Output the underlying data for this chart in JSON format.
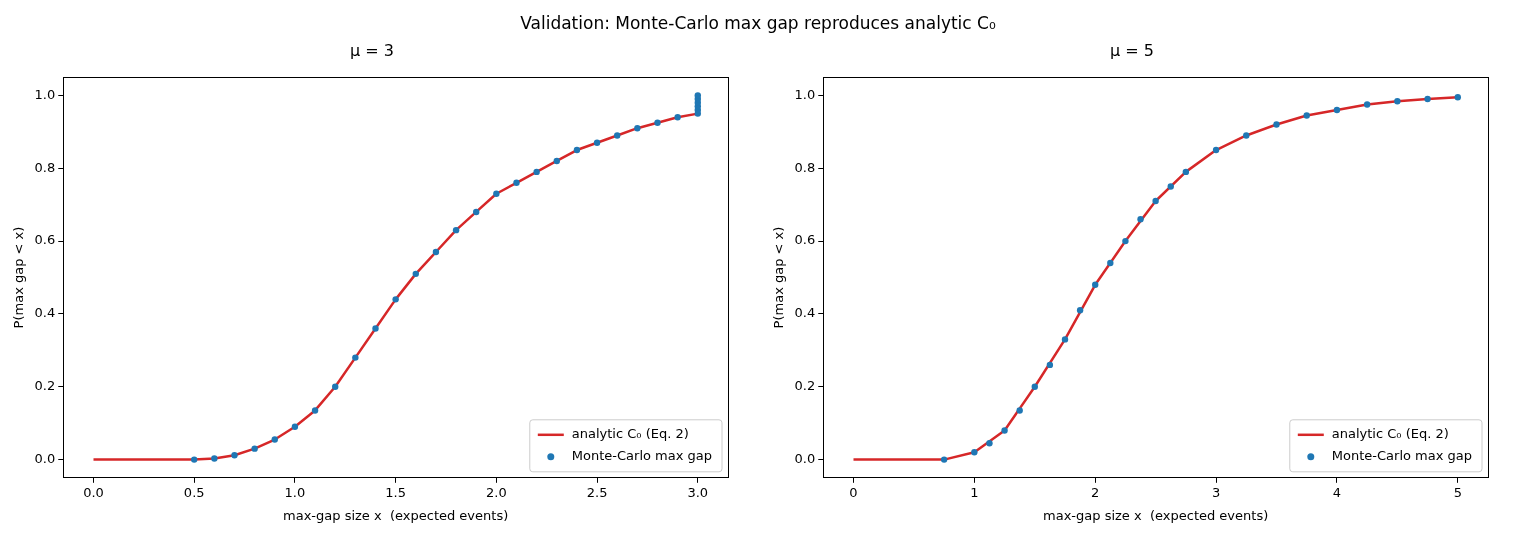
{
  "chart_data": [
    {
      "type": "line",
      "title": "μ = 3",
      "xlabel": "max-gap size x  (expected events)",
      "ylabel": "P(max gap < x)",
      "annotations": [
        "Validation: Monte-Carlo max gap reproduces analytic C₀"
      ],
      "xlim": [
        -0.15,
        3.15
      ],
      "ylim": [
        -0.05,
        1.05
      ],
      "xticks": [
        {
          "value": 0,
          "label": "0.0"
        },
        {
          "value": 0.5,
          "label": "0.5"
        },
        {
          "value": 1,
          "label": "1.0"
        },
        {
          "value": 1.5,
          "label": "1.5"
        },
        {
          "value": 2,
          "label": "2.0"
        },
        {
          "value": 2.5,
          "label": "2.5"
        },
        {
          "value": 3,
          "label": "3.0"
        }
      ],
      "yticks": [
        {
          "value": 0,
          "label": "0.0"
        },
        {
          "value": 0.2,
          "label": "0.2"
        },
        {
          "value": 0.4,
          "label": "0.4"
        },
        {
          "value": 0.6,
          "label": "0.6"
        },
        {
          "value": 0.8,
          "label": "0.8"
        },
        {
          "value": 1,
          "label": "1.0"
        }
      ],
      "grid": false,
      "legend": "bottom right",
      "series": [
        {
          "name": "analytic C₀ (Eq. 2)",
          "color": "#d62728",
          "marker": "none",
          "x": [
            0,
            0.5,
            0.6,
            0.7,
            0.8,
            0.9,
            1.0,
            1.1,
            1.2,
            1.3,
            1.4,
            1.5,
            1.6,
            1.7,
            1.8,
            1.9,
            2.0,
            2.1,
            2.2,
            2.3,
            2.4,
            2.5,
            2.6,
            2.7,
            2.8,
            2.9,
            3.0
          ],
          "values": [
            0,
            0,
            0.003,
            0.012,
            0.03,
            0.055,
            0.09,
            0.135,
            0.2,
            0.28,
            0.36,
            0.44,
            0.51,
            0.57,
            0.63,
            0.68,
            0.73,
            0.76,
            0.79,
            0.82,
            0.85,
            0.87,
            0.89,
            0.91,
            0.925,
            0.94,
            0.95
          ]
        },
        {
          "name": "Monte-Carlo max gap",
          "type": "scatter",
          "color": "#1f77b4",
          "marker": "circle",
          "x": [
            0.5,
            0.6,
            0.7,
            0.8,
            0.9,
            1.0,
            1.1,
            1.2,
            1.3,
            1.4,
            1.5,
            1.6,
            1.7,
            1.8,
            1.9,
            2.0,
            2.1,
            2.2,
            2.3,
            2.4,
            2.5,
            2.6,
            2.7,
            2.8,
            2.9,
            3.0,
            3.0,
            3.0,
            3.0,
            3.0,
            3.0
          ],
          "values": [
            0,
            0.003,
            0.012,
            0.03,
            0.055,
            0.09,
            0.135,
            0.2,
            0.28,
            0.36,
            0.44,
            0.51,
            0.57,
            0.63,
            0.68,
            0.73,
            0.76,
            0.79,
            0.82,
            0.85,
            0.87,
            0.89,
            0.91,
            0.925,
            0.94,
            0.95,
            0.96,
            0.97,
            0.98,
            0.99,
            1.0
          ]
        }
      ]
    },
    {
      "type": "line",
      "title": "μ = 5",
      "xlabel": "max-gap size x  (expected events)",
      "ylabel": "P(max gap < x)",
      "xlim": [
        -0.25,
        5.25
      ],
      "ylim": [
        -0.05,
        1.05
      ],
      "xticks": [
        0,
        1,
        2,
        3,
        4,
        5
      ],
      "yticks": [
        {
          "value": 0,
          "label": "0.0"
        },
        {
          "value": 0.2,
          "label": "0.2"
        },
        {
          "value": 0.4,
          "label": "0.4"
        },
        {
          "value": 0.6,
          "label": "0.6"
        },
        {
          "value": 0.8,
          "label": "0.8"
        },
        {
          "value": 1,
          "label": "1.0"
        }
      ],
      "grid": false,
      "legend": "bottom right",
      "series": [
        {
          "name": "analytic C₀ (Eq. 2)",
          "color": "#d62728",
          "marker": "none",
          "x": [
            0,
            0.5,
            0.75,
            1.0,
            1.25,
            1.5,
            1.75,
            2.0,
            2.25,
            2.5,
            2.75,
            3.0,
            3.25,
            3.5,
            3.75,
            4.0,
            4.25,
            4.5,
            4.75,
            5.0
          ],
          "values": [
            0,
            0,
            0,
            0.02,
            0.08,
            0.2,
            0.33,
            0.48,
            0.6,
            0.71,
            0.79,
            0.85,
            0.89,
            0.92,
            0.945,
            0.96,
            0.975,
            0.984,
            0.99,
            0.995
          ]
        },
        {
          "name": "Monte-Carlo max gap",
          "type": "scatter",
          "color": "#1f77b4",
          "marker": "circle",
          "x": [
            0.75,
            1.0,
            1.125,
            1.25,
            1.375,
            1.5,
            1.625,
            1.75,
            1.875,
            2.0,
            2.125,
            2.25,
            2.375,
            2.5,
            2.625,
            2.75,
            3.0,
            3.25,
            3.5,
            3.75,
            4.0,
            4.25,
            4.5,
            4.75,
            5.0
          ],
          "values": [
            0,
            0.02,
            0.045,
            0.08,
            0.135,
            0.2,
            0.26,
            0.33,
            0.41,
            0.48,
            0.54,
            0.6,
            0.66,
            0.71,
            0.75,
            0.79,
            0.85,
            0.89,
            0.92,
            0.945,
            0.96,
            0.975,
            0.984,
            0.99,
            0.995
          ]
        }
      ]
    }
  ]
}
